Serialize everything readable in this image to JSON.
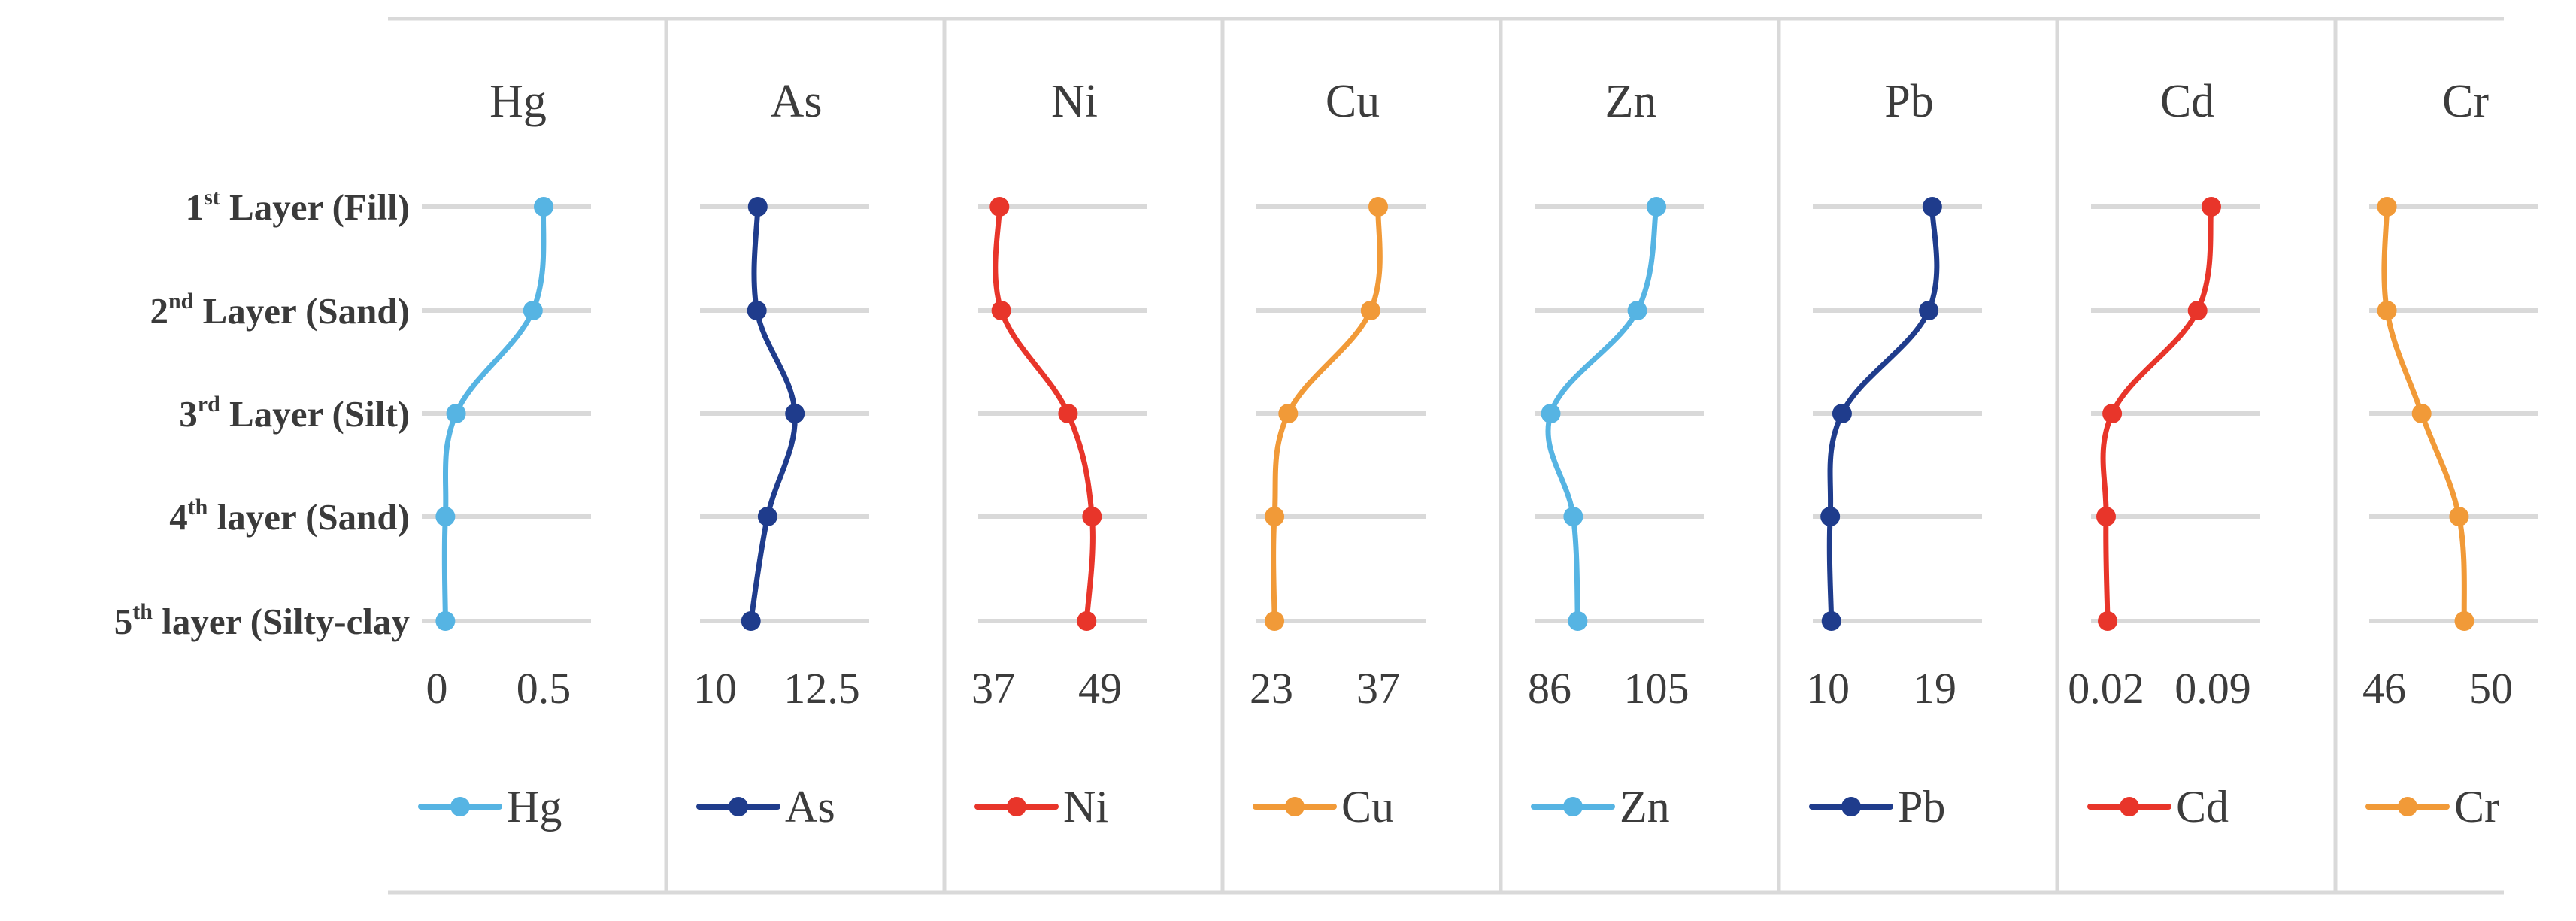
{
  "chart_data": {
    "type": "line",
    "orientation": "vertical-profile",
    "layers": [
      {
        "label": "Layer (Fill)",
        "ordinal": "1",
        "suffix": "st"
      },
      {
        "label": "Layer (Sand)",
        "ordinal": "2",
        "suffix": "nd"
      },
      {
        "label": "Layer (Silt)",
        "ordinal": "3",
        "suffix": "rd"
      },
      {
        "label": "layer (Sand)",
        "ordinal": "4",
        "suffix": "th"
      },
      {
        "label": "layer (Silty-clay",
        "ordinal": "5",
        "suffix": "th"
      }
    ],
    "series": [
      {
        "name": "Hg",
        "color": "#56b4e3",
        "xlim": [
          0,
          0.5
        ],
        "ticks": [
          "0",
          "0.5"
        ],
        "values": [
          0.5,
          0.45,
          0.09,
          0.04,
          0.04
        ]
      },
      {
        "name": "As",
        "color": "#1f3c8c",
        "xlim": [
          10,
          12.5
        ],
        "ticks": [
          "10",
          "12.5"
        ],
        "values": [
          11.0,
          10.98,
          11.87,
          11.23,
          10.84
        ]
      },
      {
        "name": "Ni",
        "color": "#e8352a",
        "xlim": [
          37,
          49
        ],
        "ticks": [
          "37",
          "49"
        ],
        "values": [
          37.7,
          37.9,
          45.4,
          48.1,
          47.5
        ]
      },
      {
        "name": "Cu",
        "color": "#f19a38",
        "xlim": [
          23,
          37
        ],
        "ticks": [
          "23",
          "37"
        ],
        "values": [
          37.0,
          36.0,
          25.2,
          23.4,
          23.4
        ]
      },
      {
        "name": "Zn",
        "color": "#56b4e3",
        "xlim": [
          86,
          105
        ],
        "ticks": [
          "86",
          "105"
        ],
        "values": [
          105,
          101.6,
          86.2,
          90.2,
          91.0
        ]
      },
      {
        "name": "Pb",
        "color": "#1f3c8c",
        "xlim": [
          10,
          19
        ],
        "ticks": [
          "10",
          "19"
        ],
        "values": [
          18.8,
          18.5,
          11.2,
          10.2,
          10.3
        ]
      },
      {
        "name": "Cd",
        "color": "#e8352a",
        "xlim": [
          0.02,
          0.09
        ],
        "ticks": [
          "0.02",
          "0.09"
        ],
        "values": [
          0.089,
          0.08,
          0.024,
          0.02,
          0.021
        ]
      },
      {
        "name": "Cr",
        "color": "#f19a38",
        "xlim": [
          46,
          50
        ],
        "ticks": [
          "46",
          "50"
        ],
        "values": [
          46.1,
          46.1,
          47.4,
          48.8,
          49.0
        ]
      }
    ],
    "legend": {
      "position": "bottom"
    },
    "grid": true
  }
}
